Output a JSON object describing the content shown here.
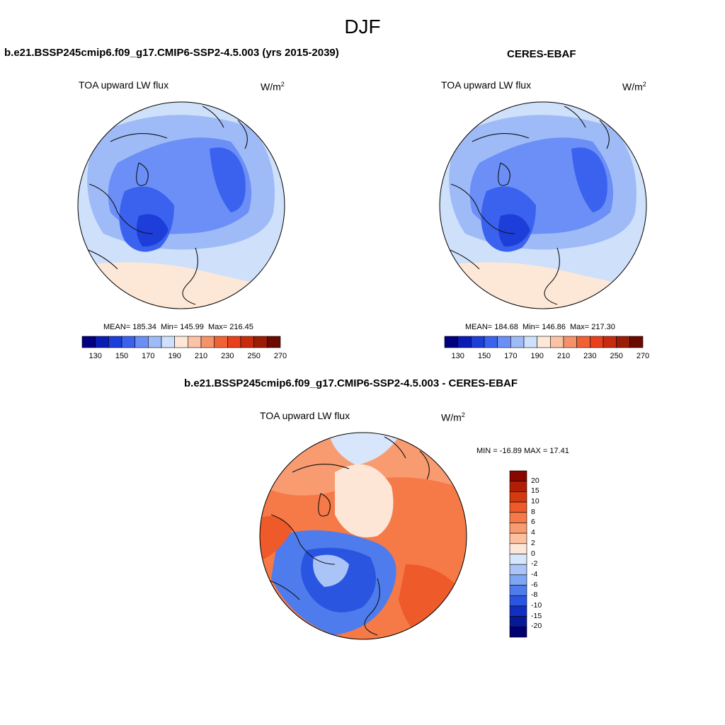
{
  "season": "DJF",
  "panel_left": {
    "title": "b.e21.BSSP245cmip6.f09_g17.CMIP6-SSP2-4.5.003 (yrs 2015-2039)",
    "var_label": "TOA upward LW flux",
    "units_base": "W/m",
    "units_exp": "2",
    "mean": "MEAN= 185.34",
    "min": "Min= 145.99",
    "max": "Max= 216.45"
  },
  "panel_right": {
    "title": "CERES-EBAF",
    "var_label": "TOA upward LW flux",
    "units_base": "W/m",
    "units_exp": "2",
    "mean": "MEAN= 184.68",
    "min": "Min= 146.86",
    "max": "Max= 217.30"
  },
  "panel_diff": {
    "title": "b.e21.BSSP245cmip6.f09_g17.CMIP6-SSP2-4.5.003 - CERES-EBAF",
    "var_label": "TOA upward LW flux",
    "units_base": "W/m",
    "units_exp": "2",
    "minmax": "MIN = -16.89 MAX =  17.41"
  },
  "colorbar_abs": {
    "ticks": [
      "130",
      "150",
      "170",
      "190",
      "210",
      "230",
      "250",
      "270"
    ],
    "colors": [
      "#000080",
      "#0a1cb4",
      "#1d3ed8",
      "#3a62ee",
      "#6b8ff6",
      "#9fbbf7",
      "#cfe0fb",
      "#fde8d8",
      "#fbc3a5",
      "#f6926a",
      "#f06236",
      "#e8401c",
      "#c72b0e",
      "#9a1c06",
      "#6b0a00"
    ]
  },
  "colorbar_diff": {
    "ticks": [
      "20",
      "15",
      "10",
      "8",
      "6",
      "4",
      "2",
      "0",
      "-2",
      "-4",
      "-6",
      "-8",
      "-10",
      "-15",
      "-20"
    ],
    "colors": [
      "#880800",
      "#b01f05",
      "#d33a10",
      "#ee5a2a",
      "#f57a48",
      "#f89b70",
      "#fbc19f",
      "#fde6d6",
      "#d8e6fb",
      "#aac4f7",
      "#7fa6f3",
      "#4f7cec",
      "#2a55e0",
      "#1230c0",
      "#061a98",
      "#000070"
    ]
  }
}
